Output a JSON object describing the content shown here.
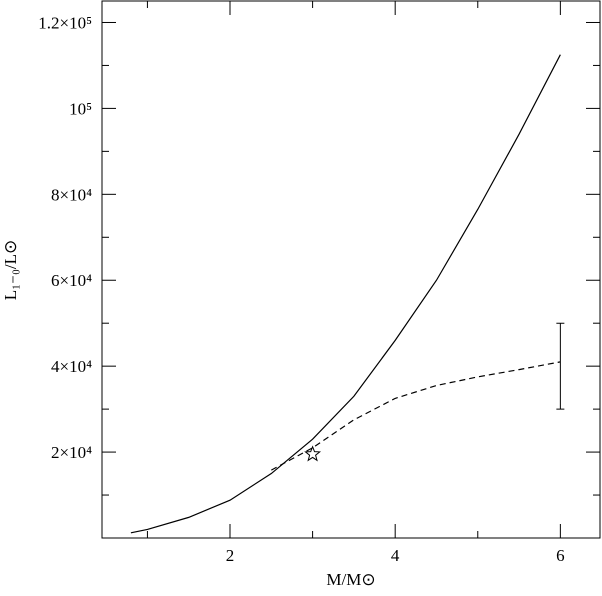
{
  "chart_data": {
    "type": "line",
    "xlabel": "M/M⊙",
    "ylabel": "L₁₋₀/L⊙",
    "xlim": [
      0.45,
      6.48
    ],
    "ylim": [
      0,
      125000
    ],
    "xticks": [
      2,
      4,
      6
    ],
    "xminor": [
      1,
      3,
      5
    ],
    "yticks": [
      {
        "value": 20000,
        "label": "2×10⁴"
      },
      {
        "value": 40000,
        "label": "4×10⁴"
      },
      {
        "value": 60000,
        "label": "6×10⁴"
      },
      {
        "value": 80000,
        "label": "8×10⁴"
      },
      {
        "value": 100000,
        "label": "10⁵"
      },
      {
        "value": 120000,
        "label": "1.2×10⁵"
      }
    ],
    "yminor": [
      10000,
      30000,
      50000,
      70000,
      90000,
      110000
    ],
    "series": [
      {
        "style": "solid",
        "color": "#000000",
        "x": [
          0.8,
          1,
          1.5,
          2,
          2.5,
          3,
          3.5,
          4,
          4.5,
          5,
          5.5,
          6
        ],
        "values": [
          1200,
          2000,
          4800,
          8800,
          15000,
          23000,
          33000,
          46000,
          60000,
          76500,
          94000,
          112500
        ]
      },
      {
        "style": "dashed",
        "color": "#000000",
        "x": [
          2.5,
          3,
          3.5,
          4,
          4.5,
          5,
          5.5,
          6
        ],
        "values": [
          15800,
          21000,
          27500,
          32500,
          35500,
          37500,
          39200,
          41000
        ]
      }
    ],
    "errorbar": {
      "x": 6,
      "value": 40000,
      "error": 10000
    },
    "star": {
      "x": 3,
      "y": 19500
    }
  }
}
